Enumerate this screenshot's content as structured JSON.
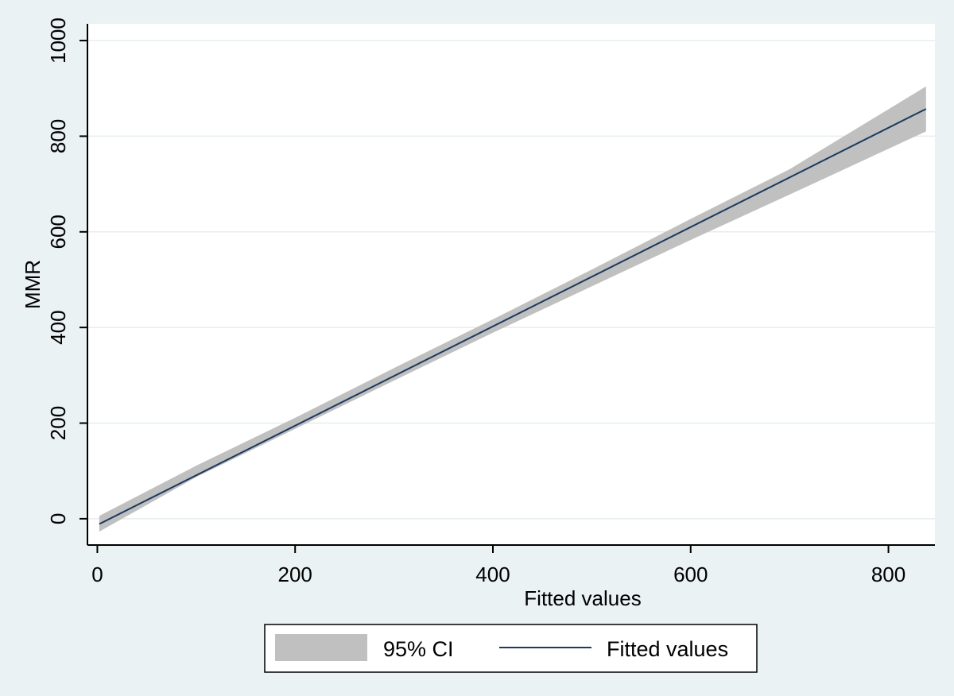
{
  "chart_data": {
    "type": "line",
    "title": "",
    "xlabel": "Fitted values",
    "ylabel": "MMR",
    "xlim": [
      -10,
      847
    ],
    "ylim": [
      -55,
      1035
    ],
    "x_ticks": [
      0,
      200,
      400,
      600,
      800
    ],
    "y_ticks": [
      0,
      200,
      400,
      600,
      800,
      1000
    ],
    "x_tick_labels": [
      "0",
      "200",
      "400",
      "600",
      "800"
    ],
    "y_tick_labels": [
      "0",
      "200",
      "400",
      "600",
      "800",
      "1000"
    ],
    "grid": "horizontal",
    "legend_position": "bottom",
    "series": [
      {
        "name": "95% CI",
        "kind": "band",
        "color": "#c0c0c0",
        "x": [
          2,
          100,
          200,
          300,
          400,
          500,
          600,
          700,
          838
        ],
        "lower": [
          -27,
          87,
          188,
          289,
          389,
          486,
          583,
          678,
          810
        ],
        "upper": [
          6,
          111,
          211,
          315,
          417,
          521,
          627,
          731,
          904
        ]
      },
      {
        "name": "Fitted values",
        "kind": "line",
        "color": "#1a3a5e",
        "x": [
          2,
          838
        ],
        "y": [
          -11,
          857
        ]
      }
    ]
  }
}
